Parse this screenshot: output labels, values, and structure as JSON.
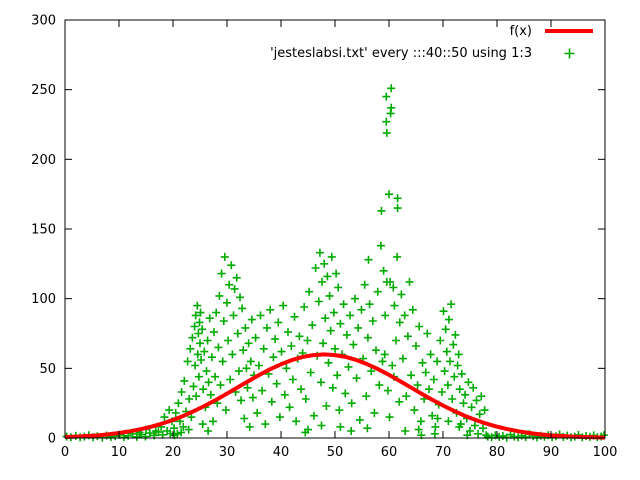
{
  "colors": {
    "background": "#ffffff",
    "axis": "#000000",
    "curve_red": "#ff0000",
    "points_green": "#00aa00"
  },
  "chart_data": {
    "type": "scatter",
    "title": "",
    "xlabel": "",
    "ylabel": "",
    "xlim": [
      0,
      100
    ],
    "ylim": [
      0,
      300
    ],
    "xticks": [
      0,
      10,
      20,
      30,
      40,
      50,
      60,
      70,
      80,
      90,
      100
    ],
    "yticks": [
      0,
      50,
      100,
      150,
      200,
      250,
      300
    ],
    "grid": false,
    "legend_position": "top-right-inside",
    "legend": [
      {
        "label": "f(x)",
        "style": "line",
        "color": "#ff0000"
      },
      {
        "label": "'jesteslabsi.txt' every :::40::50 using 1:3",
        "style": "points",
        "color": "#00aa00"
      }
    ],
    "curve": {
      "name": "f(x)",
      "description": "gaussian peak 60 at x=48, sigma 16",
      "color": "#ff0000",
      "linewidth": 4,
      "x": [
        0,
        2,
        4,
        6,
        8,
        10,
        12,
        14,
        16,
        18,
        20,
        22,
        24,
        26,
        28,
        30,
        32,
        34,
        36,
        38,
        40,
        42,
        44,
        46,
        48,
        50,
        52,
        54,
        56,
        58,
        60,
        62,
        64,
        66,
        68,
        70,
        72,
        74,
        76,
        78,
        80,
        82,
        84,
        86,
        88,
        90,
        92,
        94,
        96,
        98,
        100
      ],
      "y": [
        0.7,
        1.0,
        1.4,
        1.9,
        2.6,
        3.6,
        4.8,
        6.3,
        8.1,
        10.3,
        13.0,
        16.0,
        19.5,
        23.3,
        27.5,
        31.9,
        36.4,
        40.9,
        45.3,
        49.4,
        52.9,
        55.9,
        58.2,
        59.5,
        60.0,
        59.5,
        58.2,
        55.9,
        52.9,
        49.4,
        45.3,
        40.9,
        36.4,
        31.9,
        27.5,
        23.3,
        19.5,
        16.0,
        13.0,
        10.3,
        8.1,
        6.3,
        4.8,
        3.6,
        2.6,
        1.9,
        1.4,
        1.0,
        0.7,
        0.5,
        0.3
      ]
    },
    "scatter": {
      "name": "'jesteslabsi.txt' every :::40::50 using 1:3",
      "color": "#00aa00",
      "marker": "plus",
      "points": [
        [
          0.3,
          1
        ],
        [
          1.1,
          0.5
        ],
        [
          2,
          1.5
        ],
        [
          2.8,
          0.4
        ],
        [
          3.6,
          1
        ],
        [
          4.4,
          2
        ],
        [
          5.2,
          0.6
        ],
        [
          6,
          1.2
        ],
        [
          6.9,
          0.3
        ],
        [
          7.7,
          1.8
        ],
        [
          8.5,
          0.7
        ],
        [
          9.3,
          1.3
        ],
        [
          10.1,
          2.2
        ],
        [
          10.9,
          0.5
        ],
        [
          11.7,
          1.6
        ],
        [
          12.5,
          3
        ],
        [
          13.3,
          0.8
        ],
        [
          13.8,
          4
        ],
        [
          14.1,
          2.5
        ],
        [
          14.9,
          1.1
        ],
        [
          15,
          6
        ],
        [
          15.7,
          3.5
        ],
        [
          16.5,
          1.9
        ],
        [
          16.8,
          5
        ],
        [
          17.3,
          4.2
        ],
        [
          17.8,
          8
        ],
        [
          18.1,
          2.3
        ],
        [
          18.4,
          15
        ],
        [
          18.9,
          5
        ],
        [
          19.3,
          20
        ],
        [
          19.5,
          3.2
        ],
        [
          19.8,
          12
        ],
        [
          20.2,
          7
        ],
        [
          20.3,
          2
        ],
        [
          20.5,
          18
        ],
        [
          20.8,
          3
        ],
        [
          21,
          25
        ],
        [
          21.3,
          12
        ],
        [
          21.5,
          4
        ],
        [
          21.6,
          33
        ],
        [
          21.9,
          8
        ],
        [
          22.1,
          41
        ],
        [
          22.4,
          19
        ],
        [
          22.7,
          55
        ],
        [
          22.9,
          6
        ],
        [
          23,
          28
        ],
        [
          23.2,
          64
        ],
        [
          23.4,
          15
        ],
        [
          23.6,
          72
        ],
        [
          23.8,
          37
        ],
        [
          24,
          80
        ],
        [
          24.1,
          52
        ],
        [
          24.2,
          88
        ],
        [
          24.3,
          30
        ],
        [
          24.5,
          95
        ],
        [
          24.6,
          60
        ],
        [
          24.7,
          75
        ],
        [
          24.8,
          44
        ],
        [
          24.9,
          83
        ],
        [
          25,
          68
        ],
        [
          25.1,
          90
        ],
        [
          25.2,
          56
        ],
        [
          25.4,
          78
        ],
        [
          25.5,
          10
        ],
        [
          25.6,
          35
        ],
        [
          25.8,
          62
        ],
        [
          26,
          22
        ],
        [
          26.2,
          48
        ],
        [
          26.4,
          70
        ],
        [
          26.5,
          5
        ],
        [
          26.6,
          40
        ],
        [
          26.8,
          86
        ],
        [
          27,
          31
        ],
        [
          27.2,
          58
        ],
        [
          27.4,
          12
        ],
        [
          27.6,
          76
        ],
        [
          27.8,
          44
        ],
        [
          28,
          90
        ],
        [
          28.2,
          25
        ],
        [
          28.4,
          65
        ],
        [
          28.6,
          102
        ],
        [
          28.8,
          38
        ],
        [
          29,
          118
        ],
        [
          29.2,
          55
        ],
        [
          29.4,
          84
        ],
        [
          29.6,
          130
        ],
        [
          29.8,
          20
        ],
        [
          30,
          97
        ],
        [
          30.2,
          70
        ],
        [
          30.4,
          110
        ],
        [
          30.6,
          42
        ],
        [
          30.8,
          124
        ],
        [
          31,
          60
        ],
        [
          31.2,
          88
        ],
        [
          31.4,
          107
        ],
        [
          31.6,
          33
        ],
        [
          31.8,
          115
        ],
        [
          32,
          75
        ],
        [
          32.2,
          48
        ],
        [
          32.4,
          101
        ],
        [
          32.6,
          27
        ],
        [
          32.8,
          93
        ],
        [
          33,
          63
        ],
        [
          33.2,
          14
        ],
        [
          33.4,
          79
        ],
        [
          33.6,
          50
        ],
        [
          33.8,
          36
        ],
        [
          34,
          68
        ],
        [
          34.2,
          8
        ],
        [
          34.4,
          55
        ],
        [
          34.6,
          85
        ],
        [
          34.8,
          29
        ],
        [
          35,
          45
        ],
        [
          35.3,
          72
        ],
        [
          35.6,
          18
        ],
        [
          35.9,
          52
        ],
        [
          36.2,
          88
        ],
        [
          36.5,
          34
        ],
        [
          36.8,
          64
        ],
        [
          37.1,
          10
        ],
        [
          37.4,
          79
        ],
        [
          37.7,
          46
        ],
        [
          38,
          92
        ],
        [
          38.3,
          26
        ],
        [
          38.6,
          58
        ],
        [
          38.9,
          71
        ],
        [
          39.2,
          39
        ],
        [
          39.5,
          83
        ],
        [
          39.8,
          15
        ],
        [
          40.1,
          62
        ],
        [
          40.4,
          95
        ],
        [
          40.7,
          31
        ],
        [
          41,
          50
        ],
        [
          41.3,
          76
        ],
        [
          41.6,
          22
        ],
        [
          41.9,
          66
        ],
        [
          42.2,
          42
        ],
        [
          42.5,
          87
        ],
        [
          42.8,
          12
        ],
        [
          43.1,
          57
        ],
        [
          43.4,
          73
        ],
        [
          43.7,
          35
        ],
        [
          44,
          61
        ],
        [
          44.3,
          94
        ],
        [
          44.5,
          4
        ],
        [
          44.6,
          28
        ],
        [
          44.9,
          70
        ],
        [
          45,
          6
        ],
        [
          45.2,
          105
        ],
        [
          45.5,
          47
        ],
        [
          45.8,
          81
        ],
        [
          46.1,
          16
        ],
        [
          46.4,
          122
        ],
        [
          46.7,
          59
        ],
        [
          47,
          98
        ],
        [
          47.2,
          133
        ],
        [
          47.4,
          40
        ],
        [
          47.5,
          9
        ],
        [
          47.6,
          112
        ],
        [
          47.8,
          68
        ],
        [
          48,
          125
        ],
        [
          48.2,
          86
        ],
        [
          48.4,
          23
        ],
        [
          48.6,
          116
        ],
        [
          48.8,
          54
        ],
        [
          49,
          102
        ],
        [
          49.2,
          77
        ],
        [
          49.4,
          130
        ],
        [
          49.6,
          36
        ],
        [
          49.8,
          90
        ],
        [
          50,
          64
        ],
        [
          50.2,
          118
        ],
        [
          50.4,
          45
        ],
        [
          50.6,
          108
        ],
        [
          50.8,
          20
        ],
        [
          51,
          82
        ],
        [
          51,
          8
        ],
        [
          51.3,
          60
        ],
        [
          51.6,
          96
        ],
        [
          51.9,
          32
        ],
        [
          52.2,
          74
        ],
        [
          52.5,
          51
        ],
        [
          52.8,
          88
        ],
        [
          53,
          5
        ],
        [
          53.1,
          25
        ],
        [
          53.4,
          67
        ],
        [
          53.7,
          100
        ],
        [
          54,
          43
        ],
        [
          54.3,
          79
        ],
        [
          54.6,
          13
        ],
        [
          54.9,
          92
        ],
        [
          55.2,
          57
        ],
        [
          55.5,
          110
        ],
        [
          55.8,
          30
        ],
        [
          56,
          7
        ],
        [
          56.1,
          72
        ],
        [
          56.2,
          128
        ],
        [
          56.4,
          96
        ],
        [
          56.7,
          48
        ],
        [
          57,
          84
        ],
        [
          57.3,
          18
        ],
        [
          57.6,
          63
        ],
        [
          57.9,
          105
        ],
        [
          58.2,
          38
        ],
        [
          58.5,
          138
        ],
        [
          58.8,
          55
        ],
        [
          58.6,
          163
        ],
        [
          59,
          120
        ],
        [
          59.2,
          60
        ],
        [
          59.3,
          88
        ],
        [
          59.5,
          245
        ],
        [
          59.5,
          227
        ],
        [
          59.6,
          219
        ],
        [
          59.6,
          112
        ],
        [
          59.8,
          34
        ],
        [
          60,
          175
        ],
        [
          60.1,
          15
        ],
        [
          60.2,
          112
        ],
        [
          60.3,
          233
        ],
        [
          60.4,
          251
        ],
        [
          60.4,
          237
        ],
        [
          60.6,
          52
        ],
        [
          60.8,
          108
        ],
        [
          60.9,
          44
        ],
        [
          61,
          95
        ],
        [
          61.3,
          70
        ],
        [
          61.5,
          130
        ],
        [
          61.6,
          172
        ],
        [
          61.6,
          165
        ],
        [
          61.9,
          26
        ],
        [
          62,
          83
        ],
        [
          62.3,
          103
        ],
        [
          62.6,
          57
        ],
        [
          62.9,
          88
        ],
        [
          63,
          5
        ],
        [
          63.2,
          30
        ],
        [
          63.5,
          73
        ],
        [
          63.8,
          112
        ],
        [
          64.1,
          45
        ],
        [
          64.4,
          92
        ],
        [
          64.7,
          20
        ],
        [
          65,
          66
        ],
        [
          65.3,
          38
        ],
        [
          65.5,
          6
        ],
        [
          65.6,
          80
        ],
        [
          65.9,
          12
        ],
        [
          66,
          2
        ],
        [
          66.2,
          54
        ],
        [
          66.5,
          28
        ],
        [
          66.8,
          47
        ],
        [
          67.1,
          75
        ],
        [
          67.4,
          35
        ],
        [
          67.7,
          60
        ],
        [
          68,
          16
        ],
        [
          68.3,
          42
        ],
        [
          68.5,
          3
        ],
        [
          68.6,
          8
        ],
        [
          68.9,
          55
        ],
        [
          69,
          14
        ],
        [
          69.2,
          24
        ],
        [
          69.5,
          70
        ],
        [
          69.8,
          33
        ],
        [
          70.1,
          91
        ],
        [
          70.3,
          48
        ],
        [
          70.5,
          78
        ],
        [
          70.7,
          62
        ],
        [
          70.9,
          38
        ],
        [
          71,
          12
        ],
        [
          71.1,
          85
        ],
        [
          71.3,
          55
        ],
        [
          71.5,
          96
        ],
        [
          71.7,
          28
        ],
        [
          71.9,
          67
        ],
        [
          72.1,
          44
        ],
        [
          72.3,
          74
        ],
        [
          72.5,
          18
        ],
        [
          72.7,
          52
        ],
        [
          72.9,
          60
        ],
        [
          73,
          8
        ],
        [
          73.1,
          35
        ],
        [
          73.3,
          10
        ],
        [
          73.5,
          46
        ],
        [
          73.8,
          25
        ],
        [
          74.1,
          31
        ],
        [
          74.4,
          14
        ],
        [
          74.5,
          2
        ],
        [
          74.7,
          40
        ],
        [
          75,
          5
        ],
        [
          75.3,
          22
        ],
        [
          75.6,
          36
        ],
        [
          75.9,
          9
        ],
        [
          76.2,
          27
        ],
        [
          76.5,
          3
        ],
        [
          76.8,
          17
        ],
        [
          77.1,
          30
        ],
        [
          77.4,
          7
        ],
        [
          77.7,
          20
        ],
        [
          78,
          2
        ],
        [
          78.3,
          1
        ],
        [
          79,
          0.5
        ],
        [
          79.7,
          2
        ],
        [
          80.4,
          0.8
        ],
        [
          81.1,
          1.5
        ],
        [
          81.8,
          0.3
        ],
        [
          82.5,
          2.4
        ],
        [
          83.2,
          1
        ],
        [
          83.9,
          0.5
        ],
        [
          84.6,
          1.8
        ],
        [
          85.3,
          0.7
        ],
        [
          86,
          2.8
        ],
        [
          86.7,
          1.2
        ],
        [
          87.4,
          0.4
        ],
        [
          88.1,
          1.6
        ],
        [
          88.8,
          0.9
        ],
        [
          89.5,
          2
        ],
        [
          90.2,
          0.5
        ],
        [
          90.9,
          1.3
        ],
        [
          91.6,
          2.6
        ],
        [
          92.3,
          0.7
        ],
        [
          93,
          1.7
        ],
        [
          93.7,
          0.4
        ],
        [
          94.4,
          1
        ],
        [
          95.1,
          2.2
        ],
        [
          95.8,
          0.6
        ],
        [
          96.5,
          1.4
        ],
        [
          97.2,
          0.8
        ],
        [
          97.9,
          1.9
        ],
        [
          98.6,
          0.5
        ],
        [
          99.3,
          1.1
        ],
        [
          99.8,
          2
        ]
      ]
    }
  }
}
